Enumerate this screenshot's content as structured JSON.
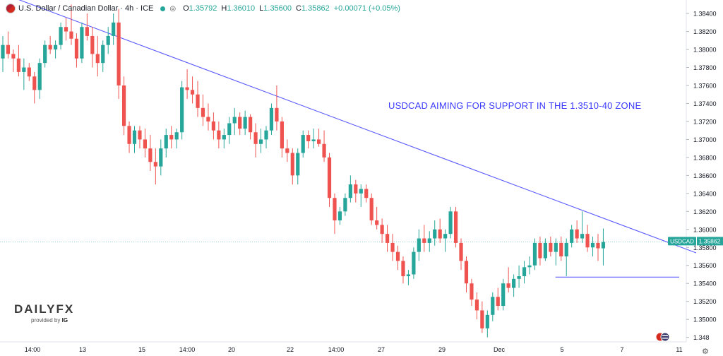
{
  "legend": {
    "title": "U.S. Dollar / Canadian Dollar · 4h · ICE",
    "o_label": "O",
    "o": "1.35792",
    "h_label": "H",
    "h": "1.36010",
    "l_label": "L",
    "l": "1.35600",
    "c_label": "C",
    "c": "1.35862",
    "change": "+0.00071 (+0.05%)"
  },
  "annotation": "USDCAD AIMING FOR SUPPORT IN THE 1.3510-40 ZONE",
  "logo": {
    "brand": "DAILYFX",
    "provided": "provided by",
    "ig": "IG"
  },
  "colors": {
    "up": "#26a69a",
    "down": "#ef5350",
    "trend": "#5b5bff",
    "support": "#5b5bff",
    "axis_text": "#131722"
  },
  "chart_data": {
    "type": "candlestick",
    "symbol": "USDCAD",
    "last_price": "1.35862",
    "ylim": [
      1.3475,
      1.3855
    ],
    "y_ticks": [
      "1.38400",
      "1.38200",
      "1.38000",
      "1.37800",
      "1.37600",
      "1.37400",
      "1.37200",
      "1.37000",
      "1.36800",
      "1.36600",
      "1.36400",
      "1.36200",
      "1.36000",
      "1.35800",
      "1.35600",
      "1.35400",
      "1.35200",
      "1.35000",
      "1.348"
    ],
    "x_ticks": [
      "14:00",
      "13",
      "15",
      "14:00",
      "20",
      "22",
      "14:00",
      "27",
      "29",
      "Dec",
      "5",
      "7",
      "11"
    ],
    "candles": [
      [
        1.379,
        1.3815,
        1.3775,
        1.3805
      ],
      [
        1.3805,
        1.382,
        1.379,
        1.3795
      ],
      [
        1.3795,
        1.38,
        1.3775,
        1.379
      ],
      [
        1.379,
        1.3805,
        1.377,
        1.3775
      ],
      [
        1.3775,
        1.379,
        1.3755,
        1.378
      ],
      [
        1.378,
        1.3785,
        1.3765,
        1.377
      ],
      [
        1.377,
        1.3775,
        1.374,
        1.3755
      ],
      [
        1.3755,
        1.379,
        1.3745,
        1.3785
      ],
      [
        1.3785,
        1.381,
        1.378,
        1.3805
      ],
      [
        1.3805,
        1.3815,
        1.3795,
        1.38
      ],
      [
        1.38,
        1.381,
        1.379,
        1.3805
      ],
      [
        1.3805,
        1.383,
        1.38,
        1.3825
      ],
      [
        1.3825,
        1.3835,
        1.381,
        1.382
      ],
      [
        1.382,
        1.385,
        1.3805,
        1.3812
      ],
      [
        1.3812,
        1.3818,
        1.378,
        1.379
      ],
      [
        1.379,
        1.383,
        1.3785,
        1.3825
      ],
      [
        1.3825,
        1.384,
        1.381,
        1.3815
      ],
      [
        1.3815,
        1.3825,
        1.378,
        1.3795
      ],
      [
        1.3795,
        1.3815,
        1.377,
        1.3785
      ],
      [
        1.3785,
        1.381,
        1.3775,
        1.3805
      ],
      [
        1.3805,
        1.3825,
        1.3795,
        1.3815
      ],
      [
        1.3815,
        1.384,
        1.3805,
        1.383
      ],
      [
        1.383,
        1.3845,
        1.3745,
        1.376
      ],
      [
        1.376,
        1.377,
        1.3705,
        1.3715
      ],
      [
        1.3715,
        1.372,
        1.3685,
        1.3695
      ],
      [
        1.3695,
        1.3715,
        1.3685,
        1.371
      ],
      [
        1.371,
        1.3715,
        1.369,
        1.37
      ],
      [
        1.37,
        1.3712,
        1.368,
        1.369
      ],
      [
        1.369,
        1.3705,
        1.3665,
        1.3675
      ],
      [
        1.3675,
        1.369,
        1.365,
        1.367
      ],
      [
        1.367,
        1.37,
        1.366,
        1.369
      ],
      [
        1.369,
        1.3712,
        1.368,
        1.3705
      ],
      [
        1.3705,
        1.3715,
        1.369,
        1.37
      ],
      [
        1.37,
        1.3712,
        1.369,
        1.3708
      ],
      [
        1.3708,
        1.3765,
        1.37,
        1.3758
      ],
      [
        1.3758,
        1.3778,
        1.3745,
        1.3755
      ],
      [
        1.3755,
        1.377,
        1.374,
        1.375
      ],
      [
        1.375,
        1.3765,
        1.3725,
        1.3735
      ],
      [
        1.3735,
        1.375,
        1.3715,
        1.3725
      ],
      [
        1.3725,
        1.374,
        1.371,
        1.372
      ],
      [
        1.372,
        1.373,
        1.37,
        1.371
      ],
      [
        1.371,
        1.372,
        1.369,
        1.37
      ],
      [
        1.37,
        1.3712,
        1.369,
        1.3705
      ],
      [
        1.3705,
        1.3725,
        1.3695,
        1.3718
      ],
      [
        1.3718,
        1.3735,
        1.3705,
        1.3725
      ],
      [
        1.3725,
        1.373,
        1.3705,
        1.3712
      ],
      [
        1.3712,
        1.3732,
        1.3705,
        1.3725
      ],
      [
        1.3725,
        1.3728,
        1.37,
        1.3708
      ],
      [
        1.3708,
        1.3718,
        1.368,
        1.3695
      ],
      [
        1.3695,
        1.3712,
        1.3685,
        1.37
      ],
      [
        1.37,
        1.3715,
        1.369,
        1.371
      ],
      [
        1.371,
        1.374,
        1.3705,
        1.3735
      ],
      [
        1.3735,
        1.376,
        1.371,
        1.372
      ],
      [
        1.372,
        1.3725,
        1.368,
        1.369
      ],
      [
        1.369,
        1.37,
        1.3675,
        1.3685
      ],
      [
        1.3685,
        1.369,
        1.365,
        1.366
      ],
      [
        1.366,
        1.369,
        1.365,
        1.3685
      ],
      [
        1.3685,
        1.371,
        1.368,
        1.3705
      ],
      [
        1.3705,
        1.371,
        1.369,
        1.3698
      ],
      [
        1.3698,
        1.3712,
        1.369,
        1.37
      ],
      [
        1.37,
        1.3712,
        1.3692,
        1.3695
      ],
      [
        1.3695,
        1.371,
        1.3675,
        1.368
      ],
      [
        1.368,
        1.3685,
        1.3625,
        1.3635
      ],
      [
        1.3635,
        1.364,
        1.3595,
        1.361
      ],
      [
        1.361,
        1.3625,
        1.3605,
        1.362
      ],
      [
        1.362,
        1.364,
        1.3615,
        1.3635
      ],
      [
        1.3635,
        1.366,
        1.363,
        1.365
      ],
      [
        1.365,
        1.3655,
        1.363,
        1.364
      ],
      [
        1.364,
        1.365,
        1.3625,
        1.3645
      ],
      [
        1.3645,
        1.365,
        1.363,
        1.3635
      ],
      [
        1.3635,
        1.364,
        1.3605,
        1.361
      ],
      [
        1.361,
        1.3625,
        1.36,
        1.3605
      ],
      [
        1.3605,
        1.3612,
        1.3585,
        1.3595
      ],
      [
        1.3595,
        1.3605,
        1.3575,
        1.3585
      ],
      [
        1.3585,
        1.3595,
        1.3565,
        1.3575
      ],
      [
        1.3575,
        1.3582,
        1.3555,
        1.3565
      ],
      [
        1.3565,
        1.357,
        1.354,
        1.3548
      ],
      [
        1.3548,
        1.3555,
        1.3538,
        1.355
      ],
      [
        1.355,
        1.358,
        1.3545,
        1.3575
      ],
      [
        1.3575,
        1.36,
        1.3565,
        1.359
      ],
      [
        1.359,
        1.3605,
        1.3575,
        1.3585
      ],
      [
        1.3585,
        1.3598,
        1.3575,
        1.359
      ],
      [
        1.359,
        1.361,
        1.3582,
        1.36
      ],
      [
        1.36,
        1.3612,
        1.3585,
        1.359
      ],
      [
        1.359,
        1.36,
        1.3575,
        1.3595
      ],
      [
        1.3595,
        1.3625,
        1.359,
        1.362
      ],
      [
        1.362,
        1.3625,
        1.358,
        1.3585
      ],
      [
        1.3585,
        1.359,
        1.3555,
        1.3565
      ],
      [
        1.3565,
        1.357,
        1.353,
        1.354
      ],
      [
        1.354,
        1.3545,
        1.3515,
        1.3522
      ],
      [
        1.3522,
        1.353,
        1.35,
        1.351
      ],
      [
        1.351,
        1.352,
        1.3485,
        1.349
      ],
      [
        1.349,
        1.351,
        1.348,
        1.3505
      ],
      [
        1.3505,
        1.353,
        1.3498,
        1.3525
      ],
      [
        1.3525,
        1.3535,
        1.351,
        1.3515
      ],
      [
        1.3515,
        1.3545,
        1.351,
        1.354
      ],
      [
        1.354,
        1.3558,
        1.353,
        1.3535
      ],
      [
        1.3535,
        1.355,
        1.3525,
        1.3545
      ],
      [
        1.3545,
        1.356,
        1.3535,
        1.3548
      ],
      [
        1.3548,
        1.3565,
        1.354,
        1.3558
      ],
      [
        1.3558,
        1.357,
        1.355,
        1.356
      ],
      [
        1.356,
        1.359,
        1.3555,
        1.3585
      ],
      [
        1.3585,
        1.3592,
        1.356,
        1.3568
      ],
      [
        1.3568,
        1.359,
        1.3565,
        1.3585
      ],
      [
        1.3585,
        1.3592,
        1.357,
        1.3575
      ],
      [
        1.3575,
        1.359,
        1.356,
        1.3585
      ],
      [
        1.3585,
        1.3592,
        1.3565,
        1.357
      ],
      [
        1.357,
        1.359,
        1.3548,
        1.3585
      ],
      [
        1.3585,
        1.3605,
        1.358,
        1.36
      ],
      [
        1.36,
        1.361,
        1.3585,
        1.359
      ],
      [
        1.359,
        1.362,
        1.3585,
        1.3595
      ],
      [
        1.3595,
        1.3605,
        1.3575,
        1.358
      ],
      [
        1.358,
        1.3592,
        1.357,
        1.3585
      ],
      [
        1.3585,
        1.3595,
        1.3565,
        1.3579
      ],
      [
        1.3579,
        1.3601,
        1.356,
        1.3586
      ]
    ],
    "trendline": {
      "from": [
        0,
        1.3862
      ],
      "to": [
        122,
        1.3595
      ]
    },
    "support": {
      "from": [
        106,
        1.3547
      ],
      "to": [
        128,
        1.3547
      ]
    }
  }
}
